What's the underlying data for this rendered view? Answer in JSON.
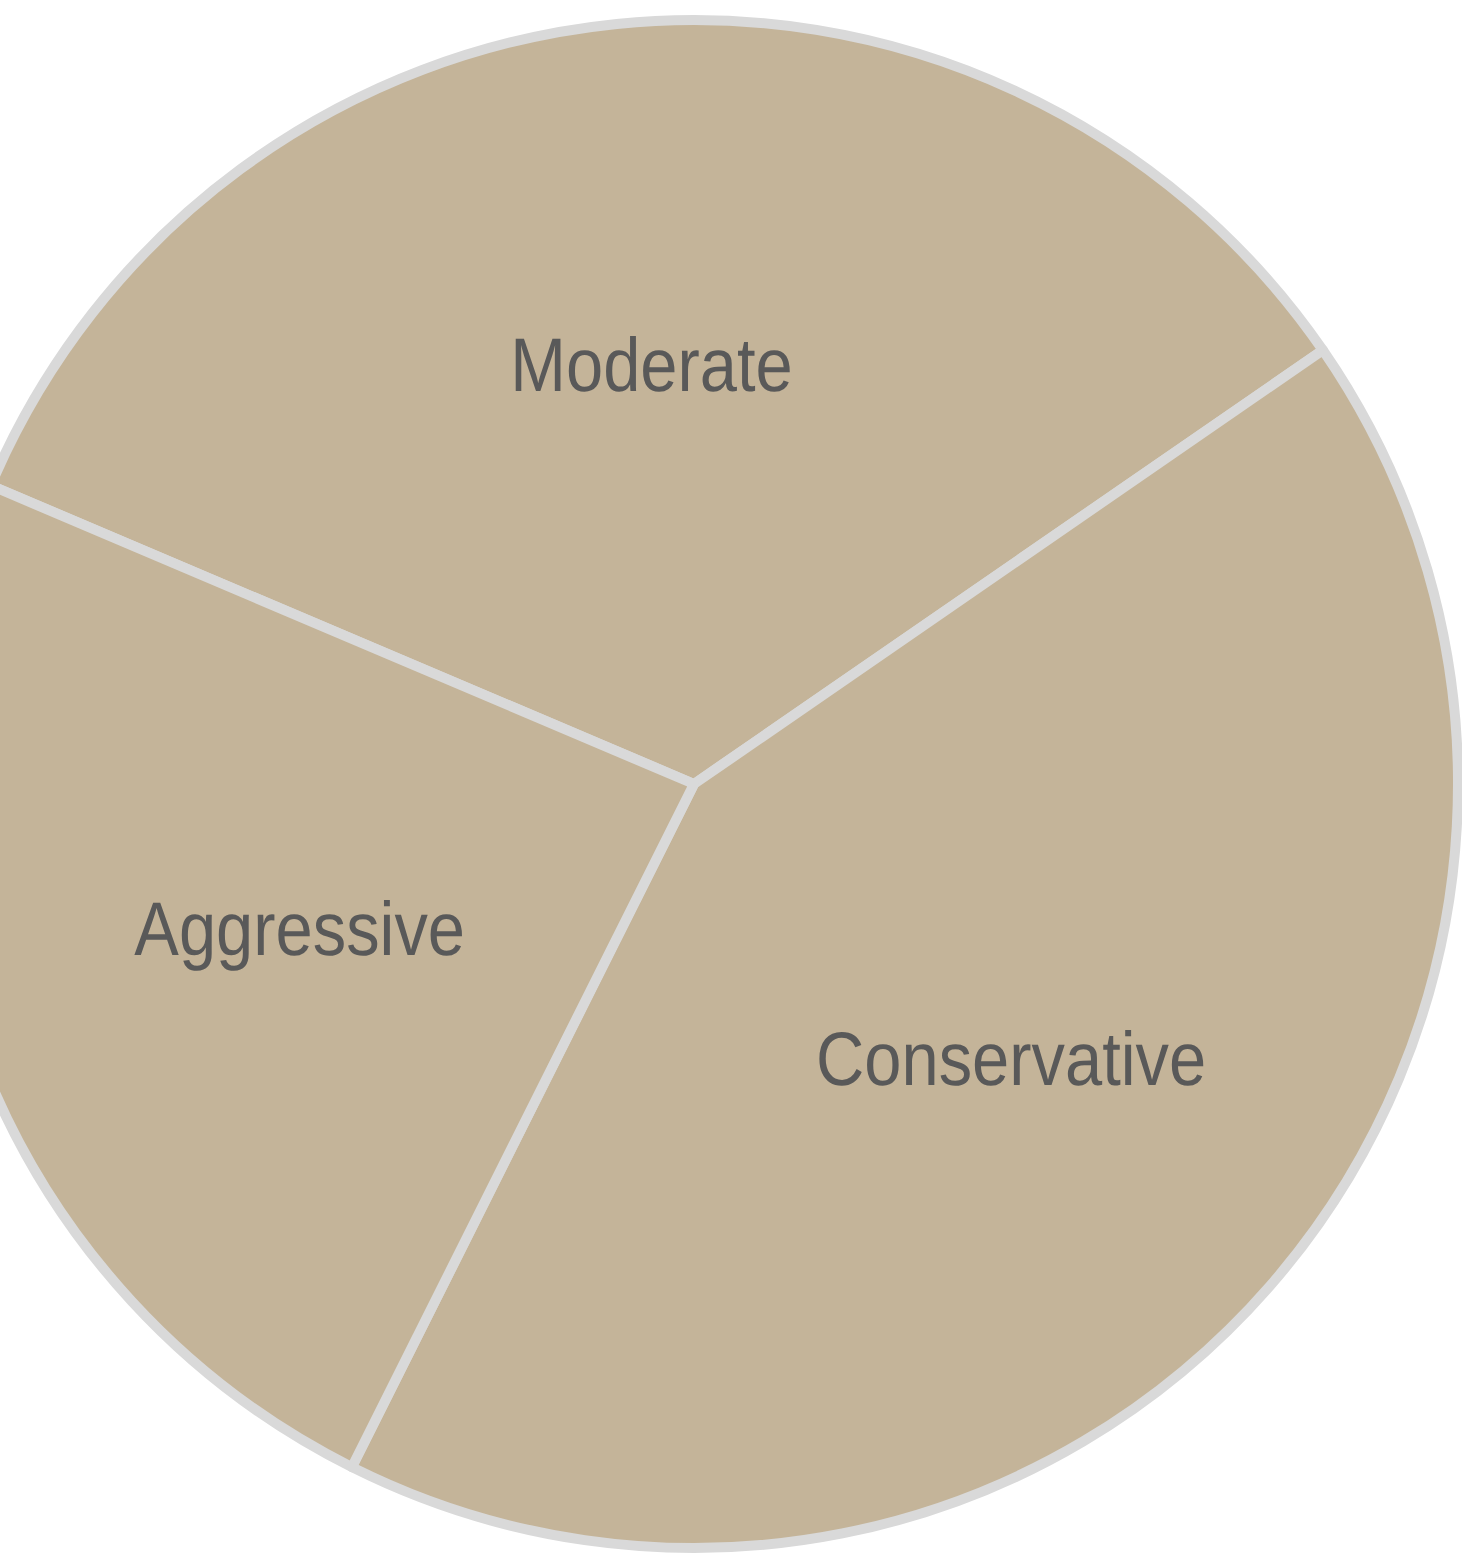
{
  "chart_data": {
    "type": "pie",
    "categories": [
      "Moderate",
      "Conservative",
      "Aggressive"
    ],
    "values": [
      34,
      42,
      24
    ],
    "colors": [
      "#c4b499",
      "#c4b499",
      "#c4b499"
    ]
  }
}
